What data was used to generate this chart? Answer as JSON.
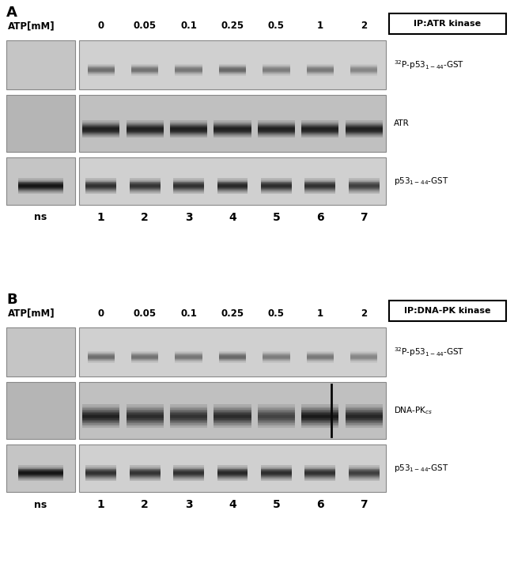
{
  "panel_A_label": "A",
  "panel_B_label": "B",
  "panel_A_box_label": "IP:ATR kinase",
  "panel_B_box_label": "IP:DNA-PK kinase",
  "atp_label": "ATP[mM]",
  "atp_values": [
    "0",
    "0.05",
    "0.1",
    "0.25",
    "0.5",
    "1",
    "2"
  ],
  "lane_labels_ns": "ns",
  "lane_numbers": [
    "1",
    "2",
    "3",
    "4",
    "5",
    "6",
    "7"
  ],
  "panel_A_row_labels": [
    "$^{32}$P-p53$_{1-44}$-GST",
    "ATR",
    "p53$_{1-44}$-GST"
  ],
  "panel_B_row_labels": [
    "$^{32}$P-p53$_{1-44}$-GST",
    "DNA-PK$_{cs}$",
    "p53$_{1-44}$-GST"
  ],
  "bg_color": "#ffffff"
}
